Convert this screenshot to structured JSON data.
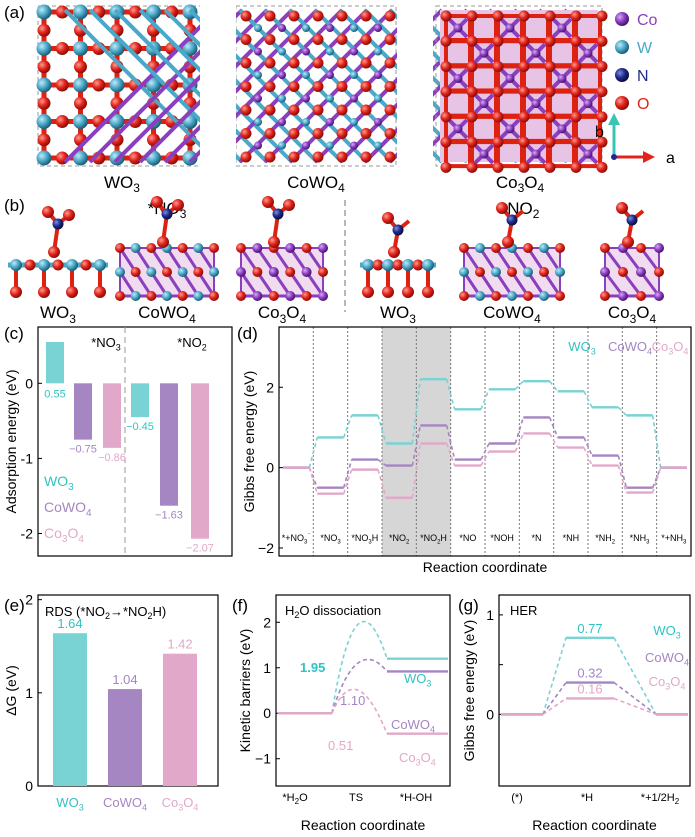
{
  "colors": {
    "wo3": "#79d2d4",
    "cowo4": "#a585c2",
    "co3o4": "#e2a8c9",
    "wo3_label": "#2fc3c3",
    "co_atom": "#8a3fbf",
    "w_atom": "#4aa8c8",
    "n_atom": "#1f2a8a",
    "o_atom": "#e0241b",
    "axis_a": "#e0241b",
    "axis_b": "#3ac4b4",
    "highlight": "#d6d6d6"
  },
  "panel_a": {
    "label": "(a)",
    "structures": [
      {
        "name": "WO",
        "sub": "3"
      },
      {
        "name": "CoWO",
        "sub": "4"
      },
      {
        "name": "Co",
        "sub": "3",
        "name2": "O",
        "sub2": "4"
      }
    ],
    "legend": [
      {
        "symbol": "Co",
        "color_key": "co_atom"
      },
      {
        "symbol": "W",
        "color_key": "w_atom"
      },
      {
        "symbol": "N",
        "color_key": "n_atom"
      },
      {
        "symbol": "O",
        "color_key": "o_atom"
      }
    ],
    "axis_b": "b",
    "axis_a": "a"
  },
  "panel_b": {
    "label": "(b)",
    "group1": "*NO",
    "group1_sub": "3",
    "group2": "*NO",
    "group2_sub": "2",
    "structures": [
      {
        "name": "WO",
        "sub": "3"
      },
      {
        "name": "CoWO",
        "sub": "4"
      },
      {
        "name": "Co",
        "sub": "3",
        "name2": "O",
        "sub2": "4"
      },
      {
        "name": "WO",
        "sub": "3"
      },
      {
        "name": "CoWO",
        "sub": "4"
      },
      {
        "name": "Co",
        "sub": "3",
        "name2": "O",
        "sub2": "4"
      }
    ]
  },
  "chart_data": [
    {
      "id": "c",
      "panel_label": "(c)",
      "type": "bar",
      "ylabel": "Adsorption energy (eV)",
      "ylim": [
        -2.3,
        0.75
      ],
      "yticks": [
        0,
        -1,
        -2
      ],
      "groups": [
        "*NO3",
        "*NO2"
      ],
      "group_labels": [
        {
          "t": "*NO",
          "s": "3"
        },
        {
          "t": "*NO",
          "s": "2"
        }
      ],
      "series": [
        {
          "name": "WO3",
          "values": [
            0.55,
            -0.45
          ]
        },
        {
          "name": "CoWO4",
          "values": [
            -0.75,
            -1.63
          ]
        },
        {
          "name": "Co3O4",
          "values": [
            -0.86,
            -2.07
          ]
        }
      ],
      "data_labels": [
        "0.55",
        "−0.75",
        "−0.86",
        "−0.45",
        "−1.63",
        "−2.07"
      ],
      "legend": [
        {
          "t": "WO",
          "s": "3"
        },
        {
          "t": "CoWO",
          "s": "4"
        },
        {
          "t": "Co",
          "s": "3",
          "t2": "O",
          "s2": "4"
        }
      ]
    },
    {
      "id": "d",
      "panel_label": "(d)",
      "type": "line",
      "title": "",
      "xlabel": "Reaction coordinate",
      "ylabel": "Gibbs free energy (eV)",
      "ylim": [
        -2.2,
        3.5
      ],
      "yticks": [
        2,
        0,
        -2
      ],
      "x_categories": [
        "*+NO3⁻",
        "*NO3",
        "*NO3H",
        "*NO2",
        "*NO2H",
        "*NO",
        "*NOH",
        "*N",
        "*NH",
        "*NH2",
        "*NH3",
        "*+NH3"
      ],
      "x_labels": [
        {
          "t": "*+NO",
          "s": "3",
          "p": "⁻"
        },
        {
          "t": "*NO",
          "s": "3"
        },
        {
          "t": "*NO",
          "s": "3",
          "t2": "H"
        },
        {
          "t": "*NO",
          "s": "2"
        },
        {
          "t": "*NO",
          "s": "2",
          "t2": "H"
        },
        {
          "t": "*NO"
        },
        {
          "t": "*NOH"
        },
        {
          "t": "*N"
        },
        {
          "t": "*NH"
        },
        {
          "t": "*NH",
          "s": "2"
        },
        {
          "t": "*NH",
          "s": "3"
        },
        {
          "t": "*+NH",
          "s": "3"
        }
      ],
      "highlight_range": [
        3,
        4
      ],
      "series": [
        {
          "name": "WO3",
          "values": [
            0,
            0.75,
            1.3,
            0.6,
            2.2,
            1.45,
            1.95,
            2.15,
            1.9,
            1.5,
            1.3,
            0
          ]
        },
        {
          "name": "CoWO4",
          "values": [
            0,
            -0.5,
            0.2,
            0.05,
            1.05,
            0.2,
            0.6,
            1.25,
            0.75,
            0.3,
            -0.5,
            0
          ]
        },
        {
          "name": "Co3O4",
          "values": [
            0,
            -0.65,
            -0.05,
            -0.75,
            0.6,
            0.05,
            0.4,
            0.85,
            0.5,
            0.05,
            -0.62,
            0
          ]
        }
      ],
      "legend": [
        {
          "t": "WO",
          "s": "3"
        },
        {
          "t": "CoWO",
          "s": "4"
        },
        {
          "t": "Co",
          "s": "3",
          "t2": "O",
          "s2": "4"
        }
      ]
    },
    {
      "id": "e",
      "panel_label": "(e)",
      "type": "bar",
      "title": "RDS (*NO2→*NO2H)",
      "title_parts": [
        {
          "t": "RDS (*NO"
        },
        {
          "s": "2"
        },
        {
          "t": "→*NO"
        },
        {
          "s": "2"
        },
        {
          "t": "H)"
        }
      ],
      "ylabel": "ΔG (eV)",
      "ylim": [
        0,
        2.05
      ],
      "yticks": [
        0,
        1,
        2
      ],
      "categories": [
        "WO3",
        "CoWO4",
        "Co3O4"
      ],
      "category_labels": [
        {
          "t": "WO",
          "s": "3"
        },
        {
          "t": "CoWO",
          "s": "4"
        },
        {
          "t": "Co",
          "s": "3",
          "t2": "O",
          "s2": "4"
        }
      ],
      "values": [
        1.64,
        1.04,
        1.42
      ],
      "data_labels": [
        "1.64",
        "1.04",
        "1.42"
      ]
    },
    {
      "id": "f",
      "panel_label": "(f)",
      "type": "line",
      "title": "H2O dissociation",
      "title_parts": [
        {
          "t": "H"
        },
        {
          "s": "2"
        },
        {
          "t": "O dissociation"
        }
      ],
      "xlabel": "Reaction coordinate",
      "ylabel": "Kinetic barriers (eV)",
      "ylim": [
        -1.6,
        2.6
      ],
      "yticks": [
        2,
        1,
        0,
        -1
      ],
      "x_categories": [
        "*H2O",
        "TS",
        "*H-OH"
      ],
      "x_labels": [
        {
          "t": "*H",
          "s": "2",
          "t2": "O"
        },
        {
          "t": "TS"
        },
        {
          "t": "*H-OH"
        }
      ],
      "series": [
        {
          "name": "WO3",
          "initial": 0,
          "ts": 1.95,
          "final": 1.2
        },
        {
          "name": "CoWO4",
          "initial": 0,
          "ts": 1.1,
          "final": 0.92
        },
        {
          "name": "Co3O4",
          "initial": 0,
          "ts": 0.51,
          "final": -0.45
        }
      ],
      "data_labels": [
        "1.95",
        "1.10",
        "0.51"
      ],
      "series_labels": [
        {
          "t": "WO",
          "s": "3"
        },
        {
          "t": "CoWO",
          "s": "4"
        },
        {
          "t": "Co",
          "s": "3",
          "t2": "O",
          "s2": "4"
        }
      ]
    },
    {
      "id": "g",
      "panel_label": "(g)",
      "type": "line",
      "title": "HER",
      "xlabel": "Reaction coordinate",
      "ylabel": "Gibbs free energy (eV)",
      "ylim": [
        -0.72,
        1.2
      ],
      "yticks": [
        1,
        0.5,
        0
      ],
      "ytick_labels": [
        "1",
        "",
        "0"
      ],
      "x_categories": [
        "(*)",
        "*H",
        "*+1/2H2"
      ],
      "x_labels": [
        {
          "t": "(*)"
        },
        {
          "t": "*H"
        },
        {
          "t": "*+1/2H",
          "s": "2"
        }
      ],
      "series": [
        {
          "name": "WO3",
          "values": [
            0,
            0.77,
            0
          ]
        },
        {
          "name": "CoWO4",
          "values": [
            0,
            0.32,
            0
          ]
        },
        {
          "name": "Co3O4",
          "values": [
            0,
            0.16,
            0
          ]
        }
      ],
      "data_labels": [
        "0.77",
        "0.32",
        "0.16"
      ],
      "legend": [
        {
          "t": "WO",
          "s": "3"
        },
        {
          "t": "CoWO",
          "s": "4"
        },
        {
          "t": "Co",
          "s": "3",
          "t2": "O",
          "s2": "4"
        }
      ]
    }
  ]
}
